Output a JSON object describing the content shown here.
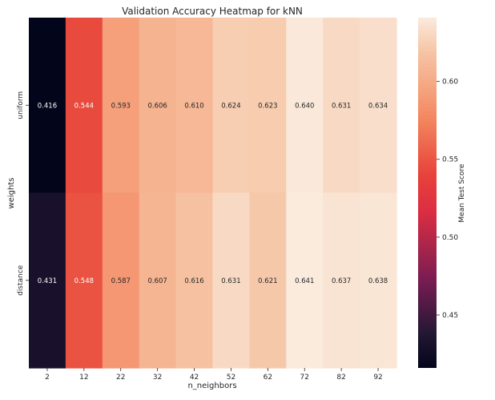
{
  "chart_data": {
    "type": "heatmap",
    "title": "Validation Accuracy Heatmap for kNN",
    "xlabel": "n_neighbors",
    "ylabel": "weights",
    "x_categories": [
      "2",
      "12",
      "22",
      "32",
      "42",
      "52",
      "62",
      "72",
      "82",
      "92"
    ],
    "y_categories": [
      "uniform",
      "distance"
    ],
    "values": [
      [
        0.416,
        0.544,
        0.593,
        0.606,
        0.61,
        0.624,
        0.623,
        0.64,
        0.631,
        0.634
      ],
      [
        0.431,
        0.548,
        0.587,
        0.607,
        0.616,
        0.631,
        0.621,
        0.641,
        0.637,
        0.638
      ]
    ],
    "value_labels": [
      [
        "0.416",
        "0.544",
        "0.593",
        "0.606",
        "0.610",
        "0.624",
        "0.623",
        "0.640",
        "0.631",
        "0.634"
      ],
      [
        "0.431",
        "0.548",
        "0.587",
        "0.607",
        "0.616",
        "0.631",
        "0.621",
        "0.641",
        "0.637",
        "0.638"
      ]
    ],
    "colorbar": {
      "label": "Mean Test Score",
      "range": [
        0.416,
        0.641
      ],
      "ticks": [
        0.45,
        0.5,
        0.55,
        0.6
      ],
      "tick_labels": [
        "0.45",
        "0.50",
        "0.55",
        "0.60"
      ]
    },
    "colormap": "rocket",
    "legend": "colorbar-right",
    "grid": false
  }
}
